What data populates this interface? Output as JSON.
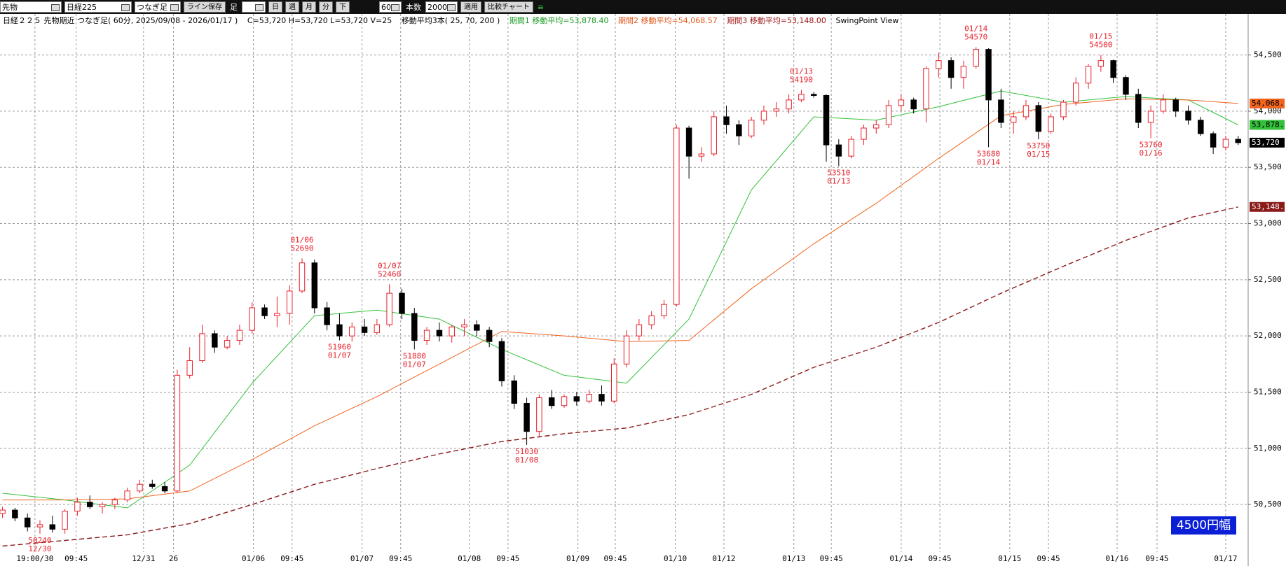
{
  "toolbar": {
    "market": "先物",
    "symbol": "日経225",
    "bar_type": "つなぎ足",
    "save": "ライン保存",
    "ashi": "足",
    "periods": [
      "日",
      "週",
      "月",
      "分",
      "下"
    ],
    "minutes": 60,
    "count_label": "本数",
    "count": 2000,
    "apply": "適用",
    "compare": "比較チャート"
  },
  "header": {
    "title": "日経２２５ 先物期近 つなぎ足( 60分, 2025/09/08 - 2026/01/17 )",
    "ohlcv": "C=53,720 H=53,720 L=53,720 V=25",
    "ma_spec": "移動平均3本( 25, 70, 200 )",
    "ma1": "期間1 移動平均=53,878.40",
    "ma2": "期間2 移動平均=54,068.57",
    "ma3": "期間3 移動平均=53,148.00",
    "view": "SwingPoint View"
  },
  "badge": "4500円幅",
  "chart_data": {
    "type": "candlestick",
    "ylim": [
      50077,
      54865
    ],
    "yticks": [
      {
        "value": 50500,
        "label": "50,500"
      },
      {
        "value": 51000,
        "label": "51,000"
      },
      {
        "value": 51500,
        "label": "51,500"
      },
      {
        "value": 52000,
        "label": "52,000"
      },
      {
        "value": 52500,
        "label": "52,500"
      },
      {
        "value": 53000,
        "label": "53,000"
      },
      {
        "value": 53500,
        "label": "53,500"
      },
      {
        "value": 54000,
        "label": "54,000"
      },
      {
        "value": 54500,
        "label": "54,500"
      }
    ],
    "xticks": [
      {
        "value": 2.6,
        "label": "19:00/30"
      },
      {
        "value": 5.9,
        "label": "09:45"
      },
      {
        "value": 11.3,
        "label": "12/31"
      },
      {
        "value": 13.7,
        "label": "26"
      },
      {
        "value": 20.1,
        "label": "01/06"
      },
      {
        "value": 23.2,
        "label": "09:45"
      },
      {
        "value": 28.8,
        "label": "01/07"
      },
      {
        "value": 31.9,
        "label": "09:45"
      },
      {
        "value": 37.4,
        "label": "01/08"
      },
      {
        "value": 40.5,
        "label": "09:45"
      },
      {
        "value": 46.1,
        "label": "01/09"
      },
      {
        "value": 49.1,
        "label": "09:45"
      },
      {
        "value": 53.9,
        "label": "01/10"
      },
      {
        "value": 57.8,
        "label": "01/12"
      },
      {
        "value": 63.4,
        "label": "01/13"
      },
      {
        "value": 66.4,
        "label": "09:45"
      },
      {
        "value": 72,
        "label": "01/14"
      },
      {
        "value": 75.1,
        "label": "09:45"
      },
      {
        "value": 80.7,
        "label": "01/15"
      },
      {
        "value": 83.8,
        "label": "09:45"
      },
      {
        "value": 89.3,
        "label": "01/16"
      },
      {
        "value": 92.5,
        "label": "09:45"
      },
      {
        "value": 98,
        "label": "01/17"
      }
    ],
    "grid": true,
    "up_color": "#e8202a",
    "down_color": "#000000",
    "last_label": "53,720",
    "candles": [
      [
        50420,
        50480,
        50380,
        50450
      ],
      [
        50450,
        50470,
        50350,
        50380
      ],
      [
        50380,
        50420,
        50260,
        50300
      ],
      [
        50300,
        50360,
        50240,
        50320
      ],
      [
        50320,
        50400,
        50250,
        50280
      ],
      [
        50280,
        50460,
        50240,
        50440
      ],
      [
        50440,
        50560,
        50400,
        50520
      ],
      [
        50520,
        50580,
        50460,
        50480
      ],
      [
        50480,
        50520,
        50420,
        50500
      ],
      [
        50500,
        50560,
        50460,
        50540
      ],
      [
        50540,
        50650,
        50520,
        50620
      ],
      [
        50620,
        50720,
        50600,
        50680
      ],
      [
        50680,
        50720,
        50640,
        50660
      ],
      [
        50660,
        50700,
        50600,
        50620
      ],
      [
        50620,
        51700,
        50600,
        51650
      ],
      [
        51650,
        51900,
        51620,
        51780
      ],
      [
        51780,
        52100,
        51760,
        52020
      ],
      [
        52020,
        52050,
        51850,
        51900
      ],
      [
        51900,
        52000,
        51880,
        51960
      ],
      [
        51960,
        52100,
        51920,
        52050
      ],
      [
        52050,
        52300,
        52020,
        52250
      ],
      [
        52250,
        52280,
        52150,
        52180
      ],
      [
        52180,
        52350,
        52080,
        52200
      ],
      [
        52200,
        52450,
        52100,
        52400
      ],
      [
        52400,
        52690,
        52380,
        52650
      ],
      [
        52650,
        52680,
        52200,
        52250
      ],
      [
        52250,
        52300,
        52050,
        52100
      ],
      [
        52100,
        52200,
        51960,
        52000
      ],
      [
        52000,
        52120,
        51950,
        52080
      ],
      [
        52080,
        52150,
        52000,
        52030
      ],
      [
        52030,
        52150,
        52010,
        52100
      ],
      [
        52100,
        52460,
        52080,
        52380
      ],
      [
        52380,
        52420,
        52150,
        52200
      ],
      [
        52200,
        52250,
        51880,
        51960
      ],
      [
        51960,
        52080,
        51920,
        52050
      ],
      [
        52050,
        52120,
        51950,
        52000
      ],
      [
        52000,
        52100,
        51940,
        52080
      ],
      [
        52080,
        52150,
        52000,
        52100
      ],
      [
        52100,
        52140,
        52000,
        52050
      ],
      [
        52050,
        52080,
        51900,
        51950
      ],
      [
        51950,
        51980,
        51550,
        51600
      ],
      [
        51600,
        51650,
        51350,
        51400
      ],
      [
        51400,
        51450,
        51030,
        51150
      ],
      [
        51150,
        51480,
        51100,
        51450
      ],
      [
        51450,
        51520,
        51350,
        51380
      ],
      [
        51380,
        51480,
        51360,
        51460
      ],
      [
        51460,
        51500,
        51380,
        51420
      ],
      [
        51420,
        51520,
        51400,
        51480
      ],
      [
        51480,
        51560,
        51380,
        51420
      ],
      [
        51420,
        51800,
        51400,
        51750
      ],
      [
        51750,
        52050,
        51720,
        52000
      ],
      [
        52000,
        52150,
        51960,
        52100
      ],
      [
        52100,
        52220,
        52060,
        52180
      ],
      [
        52180,
        52320,
        52150,
        52280
      ],
      [
        52280,
        53880,
        52260,
        53850
      ],
      [
        53850,
        53870,
        53400,
        53600
      ],
      [
        53600,
        53680,
        53550,
        53620
      ],
      [
        53620,
        54000,
        53600,
        53950
      ],
      [
        53950,
        54050,
        53800,
        53880
      ],
      [
        53880,
        53920,
        53700,
        53780
      ],
      [
        53780,
        53950,
        53760,
        53920
      ],
      [
        53920,
        54050,
        53880,
        54000
      ],
      [
        54000,
        54080,
        53950,
        54020
      ],
      [
        54020,
        54150,
        53980,
        54100
      ],
      [
        54100,
        54190,
        54080,
        54150
      ],
      [
        54150,
        54170,
        54120,
        54140
      ],
      [
        54140,
        54150,
        53550,
        53700
      ],
      [
        53700,
        53750,
        53510,
        53600
      ],
      [
        53600,
        53780,
        53580,
        53750
      ],
      [
        53750,
        53880,
        53700,
        53850
      ],
      [
        53850,
        53920,
        53800,
        53880
      ],
      [
        53880,
        54100,
        53850,
        54050
      ],
      [
        54050,
        54150,
        54000,
        54100
      ],
      [
        54100,
        54120,
        53980,
        54020
      ],
      [
        54020,
        54400,
        53900,
        54380
      ],
      [
        54380,
        54520,
        54300,
        54450
      ],
      [
        54450,
        54480,
        54200,
        54300
      ],
      [
        54300,
        54450,
        54200,
        54400
      ],
      [
        54400,
        54570,
        54380,
        54550
      ],
      [
        54550,
        54560,
        53680,
        54100
      ],
      [
        54100,
        54200,
        53850,
        53900
      ],
      [
        53900,
        54000,
        53800,
        53950
      ],
      [
        53950,
        54100,
        53920,
        54050
      ],
      [
        54050,
        54080,
        53750,
        53820
      ],
      [
        53820,
        53980,
        53800,
        53950
      ],
      [
        53950,
        54100,
        53920,
        54080
      ],
      [
        54080,
        54300,
        54050,
        54250
      ],
      [
        54250,
        54420,
        54200,
        54400
      ],
      [
        54400,
        54500,
        54350,
        54450
      ],
      [
        54450,
        54460,
        54250,
        54300
      ],
      [
        54300,
        54320,
        54100,
        54150
      ],
      [
        54150,
        54200,
        53850,
        53900
      ],
      [
        53900,
        54050,
        53760,
        54000
      ],
      [
        54000,
        54150,
        53980,
        54100
      ],
      [
        54100,
        54120,
        53950,
        54000
      ],
      [
        54000,
        54050,
        53880,
        53920
      ],
      [
        53920,
        53950,
        53780,
        53800
      ],
      [
        53800,
        53820,
        53620,
        53680
      ],
      [
        53680,
        53780,
        53650,
        53750
      ],
      [
        53750,
        53780,
        53700,
        53720
      ]
    ],
    "series": [
      {
        "name": "期間1",
        "color": "#33c13a",
        "line_style": "solid",
        "last_label": "53,878.",
        "x": [
          0,
          5,
          10,
          15,
          20,
          25,
          30,
          35,
          40,
          45,
          50,
          55,
          60,
          65,
          70,
          75,
          80,
          85,
          90,
          95,
          99
        ],
        "values": [
          50600,
          50540,
          50470,
          50850,
          51580,
          52180,
          52230,
          52150,
          51880,
          51650,
          51580,
          52150,
          53300,
          53950,
          53920,
          54040,
          54180,
          54080,
          54130,
          54100,
          53878.4
        ]
      },
      {
        "name": "期間2",
        "color": "#f0641e",
        "line_style": "solid",
        "last_label": "54,068.",
        "x": [
          0,
          5,
          10,
          15,
          20,
          25,
          30,
          35,
          40,
          45,
          50,
          55,
          60,
          65,
          70,
          75,
          80,
          85,
          90,
          95,
          99
        ],
        "values": [
          50540,
          50540,
          50550,
          50620,
          50900,
          51200,
          51460,
          51750,
          52040,
          52000,
          51950,
          51960,
          52420,
          52820,
          53180,
          53580,
          53960,
          54060,
          54110,
          54100,
          54068.57
        ]
      },
      {
        "name": "期間3",
        "color": "#8b1a1a",
        "line_style": "dashed",
        "last_label": "53,148.",
        "x": [
          0,
          5,
          10,
          15,
          20,
          25,
          30,
          35,
          40,
          45,
          50,
          55,
          60,
          65,
          70,
          75,
          80,
          85,
          90,
          95,
          99
        ],
        "values": [
          50130,
          50180,
          50230,
          50330,
          50500,
          50680,
          50820,
          50950,
          51060,
          51130,
          51180,
          51300,
          51480,
          51720,
          51900,
          52120,
          52380,
          52620,
          52850,
          53050,
          53148
        ]
      }
    ],
    "annotations": [
      {
        "candle": 3,
        "date": "12/30",
        "price": 50240
      },
      {
        "candle": 24,
        "date": "01/06",
        "price": 52690
      },
      {
        "candle": 27,
        "date": "01/07",
        "price": 51960
      },
      {
        "candle": 31,
        "date": "01/07",
        "price": 52460
      },
      {
        "candle": 33,
        "date": "01/07",
        "price": 51880
      },
      {
        "candle": 42,
        "date": "01/08",
        "price": 51030
      },
      {
        "candle": 64,
        "date": "01/13",
        "price": 54190
      },
      {
        "candle": 67,
        "date": "01/13",
        "price": 53510
      },
      {
        "candle": 78,
        "date": "01/14",
        "price": 54570
      },
      {
        "candle": 79,
        "date": "01/14",
        "price": 53680
      },
      {
        "candle": 83,
        "date": "01/15",
        "price": 53750
      },
      {
        "candle": 88,
        "date": "01/15",
        "price": 54500
      },
      {
        "candle": 92,
        "date": "01/16",
        "price": 53760
      }
    ]
  }
}
